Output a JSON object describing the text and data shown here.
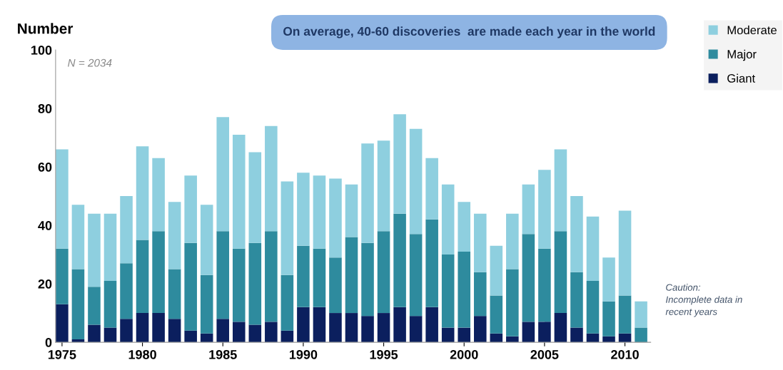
{
  "chart_data": {
    "type": "bar",
    "stacked": true,
    "ylabel": "Number",
    "x": [
      1975,
      1976,
      1977,
      1978,
      1979,
      1980,
      1981,
      1982,
      1983,
      1984,
      1985,
      1986,
      1987,
      1988,
      1989,
      1990,
      1991,
      1992,
      1993,
      1994,
      1995,
      1996,
      1997,
      1998,
      1999,
      2000,
      2001,
      2002,
      2003,
      2004,
      2005,
      2006,
      2007,
      2008,
      2009,
      2010,
      2011
    ],
    "series": [
      {
        "name": "Giant",
        "color": "#0b1f5e",
        "values": [
          13,
          1,
          6,
          5,
          8,
          10,
          10,
          8,
          4,
          3,
          8,
          7,
          6,
          7,
          4,
          12,
          12,
          10,
          10,
          9,
          10,
          12,
          9,
          12,
          5,
          5,
          9,
          3,
          2,
          7,
          7,
          10,
          5,
          3,
          2,
          3,
          0
        ]
      },
      {
        "name": "Major",
        "color": "#2e8b9e",
        "values": [
          19,
          24,
          13,
          16,
          19,
          25,
          28,
          17,
          30,
          20,
          30,
          25,
          28,
          31,
          19,
          21,
          20,
          19,
          26,
          25,
          28,
          32,
          28,
          30,
          25,
          26,
          15,
          13,
          23,
          30,
          25,
          28,
          19,
          18,
          12,
          13,
          5
        ]
      },
      {
        "name": "Moderate",
        "color": "#8ecfdf",
        "values": [
          34,
          22,
          25,
          23,
          23,
          32,
          25,
          23,
          23,
          24,
          39,
          39,
          31,
          36,
          32,
          25,
          25,
          27,
          18,
          34,
          31,
          34,
          36,
          21,
          24,
          17,
          20,
          17,
          19,
          17,
          27,
          28,
          26,
          22,
          15,
          29,
          9
        ]
      }
    ],
    "xlim": [
      1974.6,
      2011.6
    ],
    "xticks": [
      1975,
      1980,
      1985,
      1990,
      1995,
      2000,
      2005,
      2010
    ],
    "ylim": [
      0,
      100
    ],
    "yticks": [
      0,
      20,
      40,
      60,
      80,
      100
    ],
    "legend": "top right",
    "grid": false,
    "annotations": [
      "N = 2034",
      "On average, 40-60 discoveries  are made each year in the world",
      "Caution:\nIncomplete data in\nrecent years"
    ]
  }
}
